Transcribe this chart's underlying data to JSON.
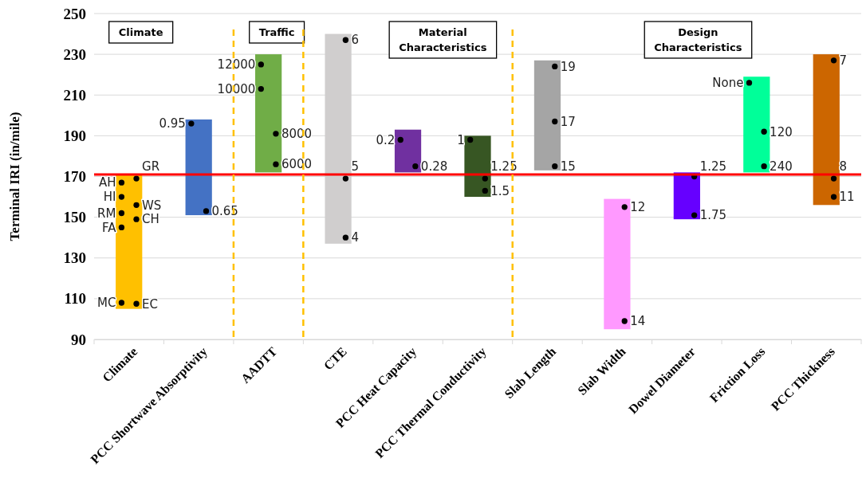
{
  "chart_data": {
    "type": "bar",
    "ylabel": "Terminal IRI (in/mile)",
    "categories": [
      "Climate",
      "PCC Shortwave Absorptivity",
      "AADTT",
      "CTE",
      "PCC Heat Capacity",
      "PCC Thermal Conductivity",
      "Slab Length",
      "Slab Width",
      "Dowel Diameter",
      "Friction Loss",
      "PCC Thickness"
    ],
    "series": [
      {
        "type": "bar",
        "colors": [
          "#ffc000",
          "#4472c4",
          "#70ad47",
          "#d0cece",
          "#7030a0",
          "#375623",
          "#a5a5a5",
          "#ff99ff",
          "#6600ff",
          "#00ff99",
          "#cc6600"
        ],
        "base": [
          105,
          151,
          172,
          137,
          172,
          160,
          173,
          95,
          149,
          172,
          156
        ],
        "values": [
          66,
          47,
          58,
          103,
          21,
          30,
          54,
          64,
          23,
          47,
          74
        ]
      },
      {
        "type": "scatter",
        "name": "AH",
        "color": "#000000",
        "x": [
          "Climate"
        ],
        "values": [
          167
        ]
      },
      {
        "type": "scatter",
        "name": "HI",
        "color": "#000000",
        "x": [
          "Climate"
        ],
        "values": [
          160
        ]
      },
      {
        "type": "scatter",
        "name": "RM",
        "color": "#000000",
        "x": [
          "Climate"
        ],
        "values": [
          152
        ]
      },
      {
        "type": "scatter",
        "name": "FA",
        "color": "#000000",
        "x": [
          "Climate"
        ],
        "values": [
          145
        ]
      },
      {
        "type": "scatter",
        "name": "MC",
        "color": "#000000",
        "x": [
          "Climate"
        ],
        "values": [
          108
        ]
      },
      {
        "type": "scatter",
        "name": "0.95",
        "color": "#000000",
        "x": [
          "PCC Shortwave Absorptivity"
        ],
        "values": [
          196
        ]
      },
      {
        "type": "scatter",
        "name": "12000",
        "color": "#000000",
        "x": [
          "AADTT"
        ],
        "values": [
          225
        ]
      },
      {
        "type": "scatter",
        "name": "10000",
        "color": "#000000",
        "x": [
          "AADTT"
        ],
        "values": [
          213
        ]
      },
      {
        "type": "scatter",
        "name": "0.2",
        "color": "#000000",
        "x": [
          "PCC Heat Capacity"
        ],
        "values": [
          188
        ]
      },
      {
        "type": "scatter",
        "name": "1",
        "color": "#000000",
        "x": [
          "PCC Thermal Conductivity"
        ],
        "values": [
          188
        ]
      },
      {
        "type": "scatter",
        "name": "None",
        "color": "#000000",
        "x": [
          "Friction Loss"
        ],
        "values": [
          216
        ]
      },
      {
        "type": "scatter",
        "name": "GR",
        "color": "#000000",
        "x": [
          "Climate"
        ],
        "values": [
          169
        ]
      },
      {
        "type": "scatter",
        "name": "WS",
        "color": "#000000",
        "x": [
          "Climate"
        ],
        "values": [
          156
        ]
      },
      {
        "type": "scatter",
        "name": "CH",
        "color": "#000000",
        "x": [
          "Climate"
        ],
        "values": [
          149
        ]
      },
      {
        "type": "scatter",
        "name": "EC",
        "color": "#000000",
        "x": [
          "Climate"
        ],
        "values": [
          107.5
        ]
      },
      {
        "type": "scatter",
        "name": "0.65",
        "color": "#000000",
        "x": [
          "PCC Shortwave Absorptivity"
        ],
        "values": [
          153
        ]
      },
      {
        "type": "scatter",
        "name": "8000",
        "color": "#000000",
        "x": [
          "AADTT"
        ],
        "values": [
          191
        ]
      },
      {
        "type": "scatter",
        "name": "6000",
        "color": "#000000",
        "x": [
          "AADTT"
        ],
        "values": [
          176
        ]
      },
      {
        "type": "scatter",
        "name": "6",
        "color": "#000000",
        "x": [
          "CTE"
        ],
        "values": [
          237
        ]
      },
      {
        "type": "scatter",
        "name": "5",
        "color": "#000000",
        "x": [
          "CTE"
        ],
        "values": [
          169
        ]
      },
      {
        "type": "scatter",
        "name": "4",
        "color": "#000000",
        "x": [
          "CTE"
        ],
        "values": [
          140
        ]
      },
      {
        "type": "scatter",
        "name": "0.28",
        "color": "#000000",
        "x": [
          "PCC Heat Capacity"
        ],
        "values": [
          175
        ]
      },
      {
        "type": "scatter",
        "name": "1.25",
        "color": "#000000",
        "x": [
          "PCC Thermal Conductivity"
        ],
        "values": [
          169
        ]
      },
      {
        "type": "scatter",
        "name": "1.5",
        "color": "#000000",
        "x": [
          "PCC Thermal Conductivity"
        ],
        "values": [
          163
        ]
      },
      {
        "type": "scatter",
        "name": "19",
        "color": "#000000",
        "x": [
          "Slab Length"
        ],
        "values": [
          224
        ]
      },
      {
        "type": "scatter",
        "name": "17",
        "color": "#000000",
        "x": [
          "Slab Length"
        ],
        "values": [
          197
        ]
      },
      {
        "type": "scatter",
        "name": "15",
        "color": "#000000",
        "x": [
          "Slab Length"
        ],
        "values": [
          175
        ]
      },
      {
        "type": "scatter",
        "name": "12",
        "color": "#000000",
        "x": [
          "Slab Width"
        ],
        "values": [
          155
        ]
      },
      {
        "type": "scatter",
        "name": "14",
        "color": "#000000",
        "x": [
          "Slab Width"
        ],
        "values": [
          99
        ]
      },
      {
        "type": "scatter",
        "name": "1.25",
        "color": "#000000",
        "x": [
          "Dowel Diameter"
        ],
        "values": [
          170
        ]
      },
      {
        "type": "scatter",
        "name": "1.75",
        "color": "#000000",
        "x": [
          "Dowel Diameter"
        ],
        "values": [
          151
        ]
      },
      {
        "type": "scatter",
        "name": "120",
        "color": "#000000",
        "x": [
          "Friction Loss"
        ],
        "values": [
          192
        ]
      },
      {
        "type": "scatter",
        "name": "240",
        "color": "#000000",
        "x": [
          "Friction Loss"
        ],
        "values": [
          175
        ]
      },
      {
        "type": "scatter",
        "name": "7",
        "color": "#000000",
        "x": [
          "PCC Thickness"
        ],
        "values": [
          227
        ]
      },
      {
        "type": "scatter",
        "name": "8",
        "color": "#000000",
        "x": [
          "PCC Thickness"
        ],
        "values": [
          169
        ]
      },
      {
        "type": "scatter",
        "name": "11",
        "color": "#000000",
        "x": [
          "PCC Thickness"
        ],
        "values": [
          160
        ]
      }
    ],
    "ylim": [
      90,
      250
    ],
    "yticks": [
      90,
      110,
      130,
      150,
      170,
      190,
      210,
      230,
      250
    ],
    "grid": "y",
    "marker": "circle",
    "ref_lines": [
      {
        "axis": "y",
        "value": 171,
        "color": "#ff0000",
        "line_style": "solid"
      }
    ],
    "annotations": [
      "Climate",
      "Traffic",
      "Material Characteristics",
      "Design Characteristics"
    ]
  }
}
